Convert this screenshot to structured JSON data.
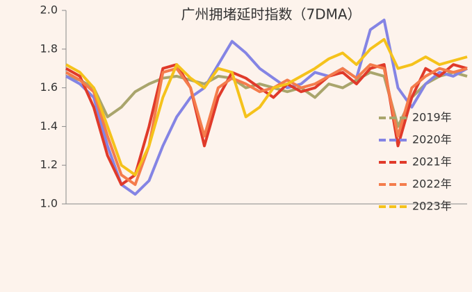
{
  "chart_data": {
    "type": "line",
    "title": "广州拥堵延时指数（7DMA）",
    "categories": [
      null,
      null,
      null,
      null,
      null,
      null,
      null,
      null,
      null,
      null,
      null,
      null,
      null,
      null,
      null,
      null,
      null,
      null,
      null,
      null,
      null,
      null,
      null,
      null,
      null,
      null,
      null,
      null,
      null,
      null
    ],
    "ylim": [
      1.0,
      2.0
    ],
    "yticks": [
      {
        "value": 1.0,
        "label": "1.0"
      },
      1.2,
      1.4,
      1.6,
      1.8,
      {
        "value": 2.0,
        "label": "2.0"
      }
    ],
    "grid": false,
    "legend": "right",
    "series": [
      {
        "name": "2019年",
        "color": "#a9a56c",
        "values": [
          1.66,
          1.64,
          1.6,
          1.45,
          1.5,
          1.58,
          1.62,
          1.65,
          1.66,
          1.64,
          1.62,
          1.66,
          1.65,
          1.6,
          1.62,
          1.6,
          1.58,
          1.6,
          1.55,
          1.62,
          1.6,
          1.64,
          1.68,
          1.66,
          1.4,
          1.55,
          1.62,
          1.66,
          1.68,
          1.66
        ]
      },
      {
        "name": "2020年",
        "color": "#8484e4",
        "values": [
          1.66,
          1.62,
          1.55,
          1.3,
          1.1,
          1.05,
          1.12,
          1.3,
          1.45,
          1.55,
          1.6,
          1.72,
          1.84,
          1.78,
          1.7,
          1.65,
          1.6,
          1.62,
          1.68,
          1.66,
          1.7,
          1.65,
          1.9,
          1.95,
          1.6,
          1.5,
          1.62,
          1.68,
          1.66,
          1.7
        ]
      },
      {
        "name": "2021年",
        "color": "#e03a2a",
        "values": [
          1.7,
          1.66,
          1.5,
          1.25,
          1.1,
          1.15,
          1.4,
          1.7,
          1.72,
          1.6,
          1.3,
          1.55,
          1.68,
          1.65,
          1.6,
          1.55,
          1.62,
          1.58,
          1.6,
          1.66,
          1.68,
          1.62,
          1.7,
          1.72,
          1.3,
          1.55,
          1.7,
          1.66,
          1.72,
          1.7
        ]
      },
      {
        "name": "2022年",
        "color": "#f47c4c",
        "values": [
          1.68,
          1.64,
          1.58,
          1.35,
          1.15,
          1.1,
          1.3,
          1.68,
          1.7,
          1.6,
          1.35,
          1.6,
          1.65,
          1.62,
          1.58,
          1.6,
          1.64,
          1.6,
          1.62,
          1.66,
          1.7,
          1.65,
          1.72,
          1.7,
          1.35,
          1.6,
          1.66,
          1.7,
          1.68,
          1.7
        ]
      },
      {
        "name": "2023年",
        "color": "#f5c21b",
        "values": [
          1.72,
          1.68,
          1.6,
          1.4,
          1.2,
          1.15,
          1.3,
          1.55,
          1.72,
          1.65,
          1.6,
          1.7,
          1.68,
          1.45,
          1.5,
          1.6,
          1.62,
          1.66,
          1.7,
          1.75,
          1.78,
          1.72,
          1.8,
          1.85,
          1.7,
          1.72,
          1.76,
          1.72,
          1.74,
          1.76
        ]
      }
    ]
  }
}
